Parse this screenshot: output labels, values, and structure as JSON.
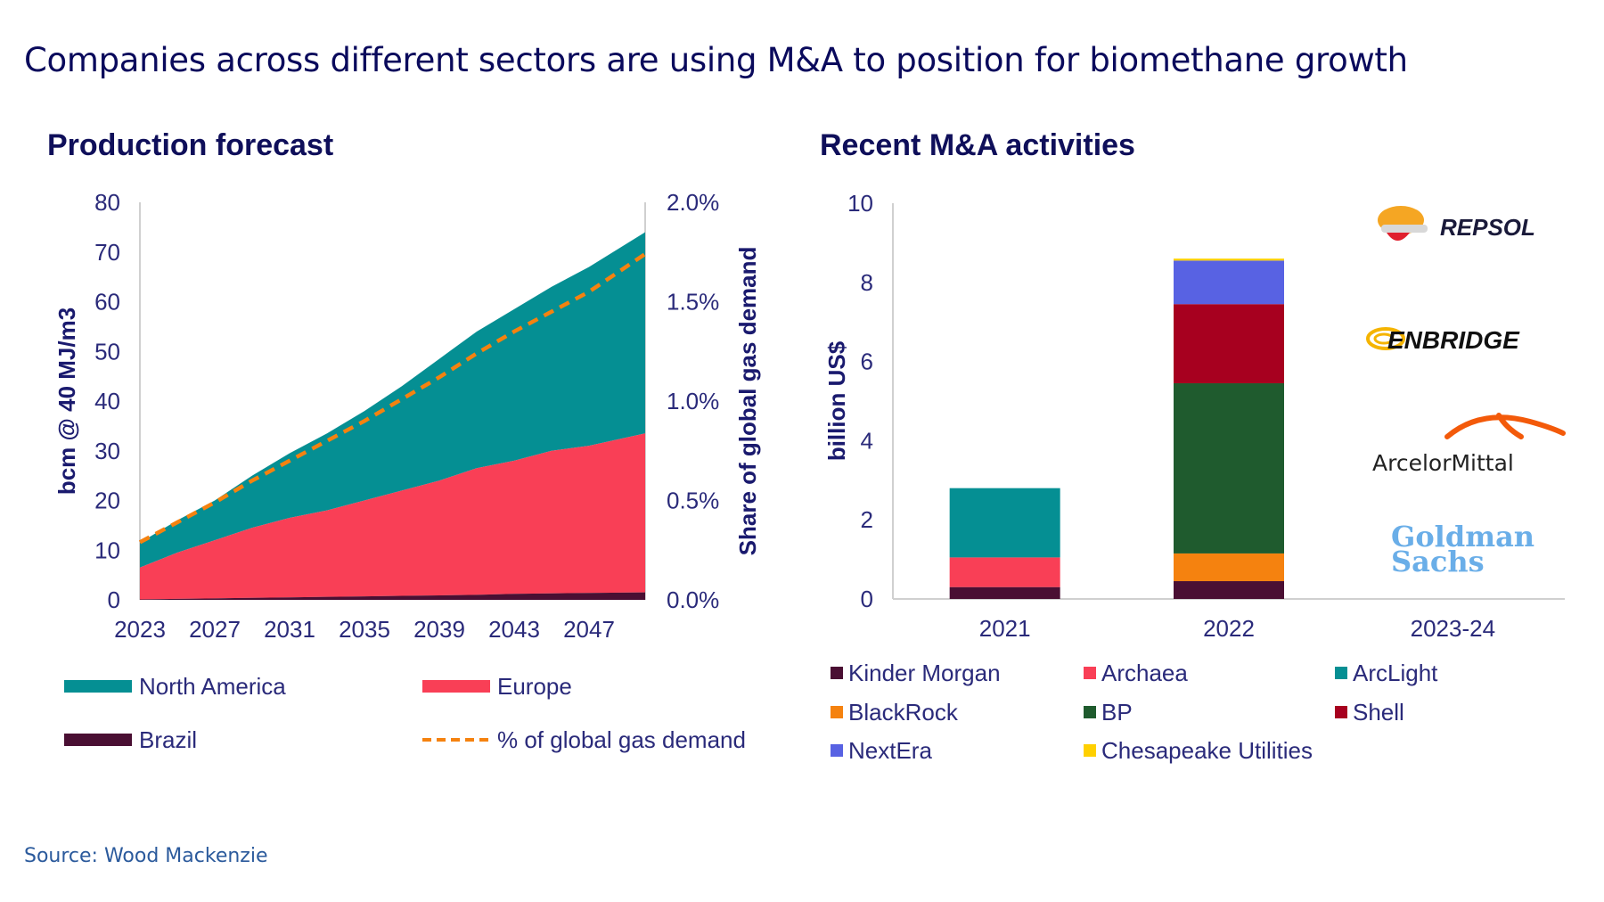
{
  "header": {
    "title": "Companies across different sectors are using M&A to position for biomethane growth"
  },
  "footer": {
    "source": "Source: Wood Mackenzie"
  },
  "logos": [
    {
      "name": "REPSOL",
      "icon": "repsol-logo"
    },
    {
      "name": "ENBRIDGE",
      "icon": "enbridge-logo"
    },
    {
      "name": "ArcelorMittal",
      "icon": "arcelormittal-logo"
    },
    {
      "name": "Goldman Sachs",
      "line1": "Goldman",
      "line2": "Sachs",
      "icon": "goldman-sachs-logo"
    }
  ],
  "colors": {
    "north_america": "#058f93",
    "europe": "#f93f56",
    "brazil": "#4a0f33",
    "pct_line": "#f5820f",
    "kinder_morgan": "#4a0f33",
    "archaea": "#f93f56",
    "arclight": "#058f93",
    "blackrock": "#f5820f",
    "bp": "#1f5b2e",
    "shell": "#a7001f",
    "nextera": "#5862e3",
    "chesapeake": "#ffd000"
  },
  "chart_data": [
    {
      "type": "area",
      "title": "Production forecast",
      "xlabel": "",
      "ylabel": "bcm @ 40 MJ/m3",
      "y2label": "Share of global gas demand",
      "ylim": [
        0,
        80
      ],
      "y2lim": [
        0,
        2.0
      ],
      "yticks": [
        "0",
        "10",
        "20",
        "30",
        "40",
        "50",
        "60",
        "70",
        "80"
      ],
      "y2ticks": [
        "0.0%",
        "0.5%",
        "1.0%",
        "1.5%",
        "2.0%"
      ],
      "xticks": [
        "2023",
        "2027",
        "2031",
        "2035",
        "2039",
        "2043",
        "2047"
      ],
      "xlim": [
        2023,
        2050
      ],
      "x": [
        2023,
        2025,
        2027,
        2029,
        2031,
        2033,
        2035,
        2037,
        2039,
        2041,
        2043,
        2045,
        2047,
        2050
      ],
      "series": [
        {
          "name": "Brazil",
          "key": "brazil",
          "values": [
            0.1,
            0.2,
            0.3,
            0.4,
            0.5,
            0.6,
            0.7,
            0.8,
            0.9,
            1.0,
            1.2,
            1.3,
            1.4,
            1.5
          ]
        },
        {
          "name": "Europe",
          "key": "europe",
          "values": [
            6.4,
            9.3,
            11.7,
            14.1,
            16.0,
            17.4,
            19.3,
            21.2,
            23.1,
            25.5,
            26.8,
            28.7,
            29.6,
            32.0
          ]
        },
        {
          "name": "North America",
          "key": "north_america",
          "values": [
            5.0,
            6.5,
            8.0,
            10.5,
            13.0,
            15.5,
            18.0,
            21.0,
            24.5,
            27.5,
            30.5,
            33.0,
            36.0,
            40.5
          ]
        },
        {
          "name": "% of global gas demand",
          "key": "pct_line",
          "axis": "secondary",
          "values": [
            0.29,
            0.39,
            0.49,
            0.6,
            0.7,
            0.8,
            0.9,
            1.01,
            1.12,
            1.24,
            1.35,
            1.45,
            1.55,
            1.74
          ]
        }
      ],
      "legend": {
        "position": "bottom",
        "items": [
          {
            "label": "North America",
            "key": "north_america",
            "style": "area"
          },
          {
            "label": "Europe",
            "key": "europe",
            "style": "area"
          },
          {
            "label": "Brazil",
            "key": "brazil",
            "style": "area"
          },
          {
            "label": "% of global gas demand",
            "key": "pct_line",
            "style": "dashed-line"
          }
        ]
      },
      "grid": false
    },
    {
      "type": "bar",
      "stacked": true,
      "title": "Recent M&A activities",
      "xlabel": "",
      "ylabel": "billion US$",
      "ylim": [
        0,
        10
      ],
      "yticks": [
        "0",
        "2",
        "4",
        "6",
        "8",
        "10"
      ],
      "categories": [
        "2021",
        "2022",
        "2023-24"
      ],
      "series": [
        {
          "name": "Kinder Morgan",
          "key": "kinder_morgan",
          "values": [
            0.3,
            0.45,
            0
          ]
        },
        {
          "name": "Archaea",
          "key": "archaea",
          "values": [
            0.75,
            0,
            0
          ]
        },
        {
          "name": "ArcLight",
          "key": "arclight",
          "values": [
            1.75,
            0,
            0
          ]
        },
        {
          "name": "BlackRock",
          "key": "blackrock",
          "values": [
            0,
            0.7,
            0
          ]
        },
        {
          "name": "BP",
          "key": "bp",
          "values": [
            0,
            4.3,
            0
          ]
        },
        {
          "name": "Shell",
          "key": "shell",
          "values": [
            0,
            2.0,
            0
          ]
        },
        {
          "name": "NextEra",
          "key": "nextera",
          "values": [
            0,
            1.1,
            0
          ]
        },
        {
          "name": "Chesapeake Utilities",
          "key": "chesapeake",
          "values": [
            0,
            0.05,
            0
          ]
        }
      ],
      "legend": {
        "position": "bottom"
      },
      "grid": false
    }
  ]
}
